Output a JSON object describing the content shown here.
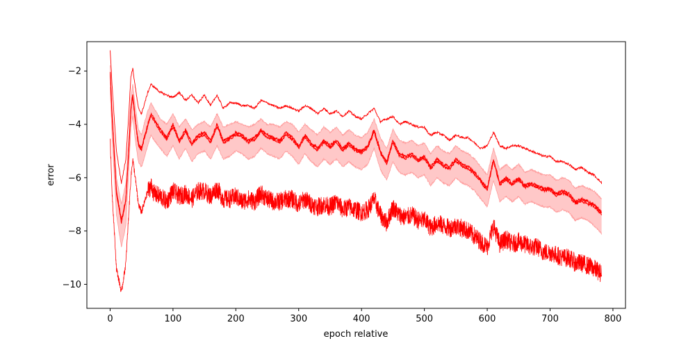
{
  "chart_data": {
    "type": "line",
    "title": "",
    "xlabel": "epoch relative",
    "ylabel": "error",
    "xlim": [
      -37,
      820
    ],
    "ylim": [
      -10.9,
      -0.9
    ],
    "x_ticks": [
      0,
      100,
      200,
      300,
      400,
      500,
      600,
      700,
      800
    ],
    "y_ticks": [
      -10,
      -8,
      -6,
      -4,
      -2
    ],
    "grid": false,
    "legend": "none",
    "colors": {
      "line": "#ff0000",
      "band": "#ffc8c8",
      "band_edge": "#ff9a9a"
    },
    "series": [
      {
        "role": "upper",
        "x": [
          0,
          3,
          10,
          18,
          25,
          30,
          33,
          36,
          40,
          45,
          50,
          55,
          60,
          65,
          70,
          80,
          90,
          100,
          110,
          120,
          130,
          140,
          150,
          160,
          170,
          180,
          190,
          200,
          210,
          220,
          230,
          240,
          250,
          260,
          270,
          280,
          290,
          300,
          310,
          320,
          330,
          340,
          350,
          360,
          370,
          380,
          390,
          400,
          410,
          420,
          430,
          440,
          450,
          460,
          470,
          480,
          490,
          500,
          505,
          510,
          520,
          530,
          540,
          550,
          560,
          570,
          580,
          590,
          600,
          610,
          620,
          630,
          640,
          650,
          660,
          670,
          680,
          690,
          700,
          710,
          720,
          730,
          740,
          750,
          760,
          770,
          782
        ],
        "y": [
          -1.2,
          -2.5,
          -5.0,
          -6.2,
          -5.3,
          -3.5,
          -2.2,
          -1.9,
          -2.6,
          -3.4,
          -3.6,
          -3.2,
          -2.8,
          -2.5,
          -2.6,
          -2.8,
          -2.9,
          -3.0,
          -2.8,
          -3.1,
          -2.9,
          -3.2,
          -2.9,
          -3.3,
          -2.9,
          -3.4,
          -3.2,
          -3.2,
          -3.3,
          -3.3,
          -3.4,
          -3.1,
          -3.2,
          -3.3,
          -3.4,
          -3.3,
          -3.4,
          -3.5,
          -3.3,
          -3.4,
          -3.6,
          -3.4,
          -3.6,
          -3.5,
          -3.7,
          -3.5,
          -3.7,
          -3.8,
          -3.6,
          -3.4,
          -3.9,
          -3.8,
          -3.7,
          -4.0,
          -3.9,
          -4.0,
          -4.1,
          -4.1,
          -4.3,
          -4.4,
          -4.3,
          -4.4,
          -4.6,
          -4.4,
          -4.5,
          -4.5,
          -4.7,
          -4.9,
          -4.8,
          -4.3,
          -4.8,
          -4.9,
          -4.8,
          -4.8,
          -4.9,
          -5.0,
          -5.1,
          -5.2,
          -5.2,
          -5.4,
          -5.4,
          -5.5,
          -5.7,
          -5.6,
          -5.8,
          -5.9,
          -6.2
        ]
      },
      {
        "role": "mean",
        "x": [
          0,
          3,
          10,
          18,
          25,
          30,
          33,
          36,
          40,
          45,
          50,
          55,
          60,
          65,
          70,
          80,
          90,
          100,
          110,
          120,
          130,
          140,
          150,
          160,
          170,
          180,
          190,
          200,
          210,
          220,
          230,
          240,
          250,
          260,
          270,
          280,
          290,
          300,
          310,
          320,
          330,
          340,
          350,
          360,
          370,
          380,
          390,
          400,
          410,
          420,
          430,
          440,
          450,
          460,
          470,
          480,
          490,
          500,
          505,
          510,
          520,
          530,
          540,
          550,
          560,
          570,
          580,
          590,
          600,
          610,
          620,
          630,
          640,
          650,
          660,
          670,
          680,
          690,
          700,
          710,
          720,
          730,
          740,
          750,
          760,
          770,
          782
        ],
        "y": [
          -2.0,
          -3.6,
          -6.5,
          -7.6,
          -6.8,
          -4.8,
          -3.4,
          -2.9,
          -3.8,
          -4.7,
          -4.9,
          -4.4,
          -4.0,
          -3.6,
          -3.8,
          -4.2,
          -4.5,
          -4.0,
          -4.6,
          -4.2,
          -4.7,
          -4.4,
          -4.3,
          -4.6,
          -4.0,
          -4.6,
          -4.5,
          -4.3,
          -4.4,
          -4.6,
          -4.5,
          -4.2,
          -4.4,
          -4.5,
          -4.6,
          -4.3,
          -4.5,
          -4.8,
          -4.4,
          -4.7,
          -4.9,
          -4.6,
          -4.8,
          -4.6,
          -4.9,
          -4.7,
          -4.9,
          -5.0,
          -4.8,
          -4.2,
          -5.0,
          -5.4,
          -4.6,
          -5.1,
          -5.2,
          -5.1,
          -5.3,
          -5.2,
          -5.4,
          -5.6,
          -5.3,
          -5.5,
          -5.6,
          -5.3,
          -5.5,
          -5.6,
          -5.8,
          -6.1,
          -6.4,
          -5.3,
          -6.2,
          -6.0,
          -6.2,
          -6.0,
          -6.3,
          -6.2,
          -6.3,
          -6.4,
          -6.4,
          -6.6,
          -6.5,
          -6.6,
          -6.9,
          -6.8,
          -6.9,
          -7.0,
          -7.3
        ]
      },
      {
        "role": "band_upper",
        "x": [
          0,
          3,
          10,
          18,
          25,
          30,
          33,
          36,
          40,
          45,
          50,
          55,
          60,
          65,
          70,
          80,
          90,
          100,
          110,
          120,
          130,
          140,
          150,
          160,
          170,
          180,
          190,
          200,
          210,
          220,
          230,
          240,
          250,
          260,
          270,
          280,
          290,
          300,
          310,
          320,
          330,
          340,
          350,
          360,
          370,
          380,
          390,
          400,
          410,
          420,
          430,
          440,
          450,
          460,
          470,
          480,
          490,
          500,
          505,
          510,
          520,
          530,
          540,
          550,
          560,
          570,
          580,
          590,
          600,
          610,
          620,
          630,
          640,
          650,
          660,
          670,
          680,
          690,
          700,
          710,
          720,
          730,
          740,
          750,
          760,
          770,
          782
        ],
        "y": [
          -1.8,
          -3.3,
          -6.0,
          -7.0,
          -6.2,
          -4.3,
          -3.0,
          -2.5,
          -3.3,
          -4.2,
          -4.4,
          -3.9,
          -3.5,
          -3.2,
          -3.4,
          -3.8,
          -4.0,
          -3.6,
          -4.1,
          -3.8,
          -4.2,
          -4.0,
          -3.9,
          -4.1,
          -3.6,
          -4.1,
          -4.0,
          -3.9,
          -4.0,
          -4.1,
          -4.0,
          -3.8,
          -4.0,
          -4.0,
          -4.1,
          -3.9,
          -4.0,
          -4.3,
          -4.0,
          -4.2,
          -4.4,
          -4.1,
          -4.3,
          -4.1,
          -4.4,
          -4.2,
          -4.4,
          -4.5,
          -4.3,
          -3.8,
          -4.5,
          -4.9,
          -4.2,
          -4.6,
          -4.7,
          -4.6,
          -4.8,
          -4.7,
          -4.9,
          -5.1,
          -4.8,
          -5.0,
          -5.1,
          -4.8,
          -5.0,
          -5.1,
          -5.3,
          -5.6,
          -5.9,
          -4.9,
          -5.7,
          -5.5,
          -5.7,
          -5.5,
          -5.8,
          -5.7,
          -5.8,
          -5.9,
          -5.9,
          -6.1,
          -6.0,
          -6.1,
          -6.4,
          -6.3,
          -6.4,
          -6.5,
          -6.8
        ]
      },
      {
        "role": "band_lower",
        "x": [
          0,
          3,
          10,
          18,
          25,
          30,
          33,
          36,
          40,
          45,
          50,
          55,
          60,
          65,
          70,
          80,
          90,
          100,
          110,
          120,
          130,
          140,
          150,
          160,
          170,
          180,
          190,
          200,
          210,
          220,
          230,
          240,
          250,
          260,
          270,
          280,
          290,
          300,
          310,
          320,
          330,
          340,
          350,
          360,
          370,
          380,
          390,
          400,
          410,
          420,
          430,
          440,
          450,
          460,
          470,
          480,
          490,
          500,
          505,
          510,
          520,
          530,
          540,
          550,
          560,
          570,
          580,
          590,
          600,
          610,
          620,
          630,
          640,
          650,
          660,
          670,
          680,
          690,
          700,
          710,
          720,
          730,
          740,
          750,
          760,
          770,
          782
        ],
        "y": [
          -2.6,
          -4.4,
          -7.4,
          -8.6,
          -7.8,
          -5.6,
          -4.1,
          -3.7,
          -4.6,
          -5.4,
          -5.6,
          -5.2,
          -4.8,
          -4.4,
          -4.6,
          -4.9,
          -5.2,
          -4.8,
          -5.3,
          -4.9,
          -5.4,
          -5.1,
          -5.0,
          -5.3,
          -4.8,
          -5.3,
          -5.2,
          -5.0,
          -5.1,
          -5.3,
          -5.2,
          -4.9,
          -5.1,
          -5.2,
          -5.3,
          -5.0,
          -5.2,
          -5.5,
          -5.1,
          -5.4,
          -5.6,
          -5.3,
          -5.5,
          -5.3,
          -5.6,
          -5.4,
          -5.6,
          -5.7,
          -5.5,
          -4.9,
          -5.7,
          -6.1,
          -5.4,
          -5.8,
          -5.9,
          -5.8,
          -6.0,
          -5.9,
          -6.1,
          -6.3,
          -6.0,
          -6.2,
          -6.3,
          -6.0,
          -6.2,
          -6.3,
          -6.5,
          -6.8,
          -7.1,
          -6.1,
          -6.9,
          -6.7,
          -6.9,
          -6.7,
          -7.0,
          -6.9,
          -7.0,
          -7.1,
          -7.1,
          -7.3,
          -7.2,
          -7.3,
          -7.6,
          -7.5,
          -7.6,
          -7.8,
          -8.1
        ]
      },
      {
        "role": "lower",
        "x": [
          0,
          3,
          10,
          18,
          25,
          30,
          33,
          36,
          40,
          45,
          50,
          55,
          60,
          65,
          70,
          80,
          90,
          100,
          110,
          120,
          130,
          140,
          150,
          160,
          170,
          180,
          190,
          200,
          210,
          220,
          230,
          240,
          250,
          260,
          270,
          280,
          290,
          300,
          310,
          320,
          330,
          340,
          350,
          360,
          370,
          380,
          390,
          400,
          410,
          420,
          430,
          440,
          450,
          460,
          470,
          480,
          490,
          500,
          505,
          510,
          520,
          530,
          540,
          550,
          560,
          570,
          580,
          590,
          600,
          610,
          620,
          630,
          640,
          650,
          660,
          670,
          680,
          690,
          700,
          710,
          720,
          730,
          740,
          750,
          760,
          770,
          782
        ],
        "y": [
          -4.5,
          -6.5,
          -9.4,
          -10.3,
          -9.2,
          -7.2,
          -6.0,
          -5.3,
          -6.0,
          -7.0,
          -7.3,
          -6.9,
          -6.5,
          -6.3,
          -6.6,
          -6.7,
          -6.9,
          -6.5,
          -6.7,
          -6.6,
          -6.8,
          -6.5,
          -6.5,
          -6.7,
          -6.4,
          -6.8,
          -6.8,
          -6.7,
          -6.9,
          -6.8,
          -6.9,
          -6.6,
          -6.8,
          -6.9,
          -6.9,
          -6.8,
          -6.8,
          -7.0,
          -6.8,
          -7.0,
          -7.1,
          -7.0,
          -7.1,
          -6.9,
          -7.2,
          -7.1,
          -7.2,
          -7.3,
          -7.2,
          -6.8,
          -7.4,
          -7.7,
          -7.1,
          -7.4,
          -7.5,
          -7.4,
          -7.6,
          -7.6,
          -7.7,
          -7.9,
          -7.7,
          -7.8,
          -7.9,
          -7.8,
          -7.9,
          -8.0,
          -8.2,
          -8.4,
          -8.6,
          -7.8,
          -8.5,
          -8.3,
          -8.5,
          -8.4,
          -8.5,
          -8.6,
          -8.6,
          -8.8,
          -8.8,
          -8.9,
          -9.0,
          -9.0,
          -9.2,
          -9.2,
          -9.3,
          -9.4,
          -9.6
        ]
      }
    ]
  }
}
